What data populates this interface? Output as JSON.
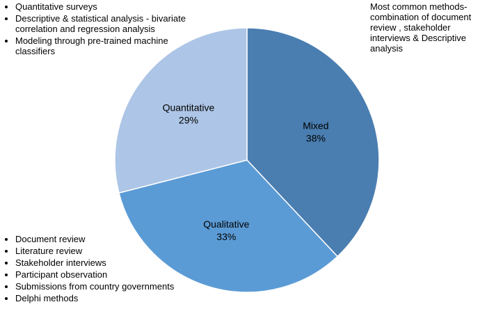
{
  "chart_data": {
    "type": "pie",
    "categories": [
      "Mixed",
      "Qualitative",
      "Quantitative"
    ],
    "values": [
      38,
      33,
      29
    ],
    "value_labels": [
      "38%",
      "33%",
      "29%"
    ],
    "colors": [
      "#4a7eb1",
      "#5b9bd5",
      "#adc5e6"
    ],
    "annotations": [
      {
        "items": [
          "Quantitative surveys",
          "Descriptive & statistical analysis - bivariate correlation and regression analysis",
          "Modeling through pre-trained machine classifiers"
        ]
      },
      {
        "text": "Most common methods- combination of document review , stakeholder interviews & Descriptive analysis"
      },
      {
        "items": [
          "Document review",
          "Literature review",
          "Stakeholder interviews",
          "Participant observation",
          "Submissions from country governments",
          "Delphi methods"
        ]
      }
    ]
  }
}
